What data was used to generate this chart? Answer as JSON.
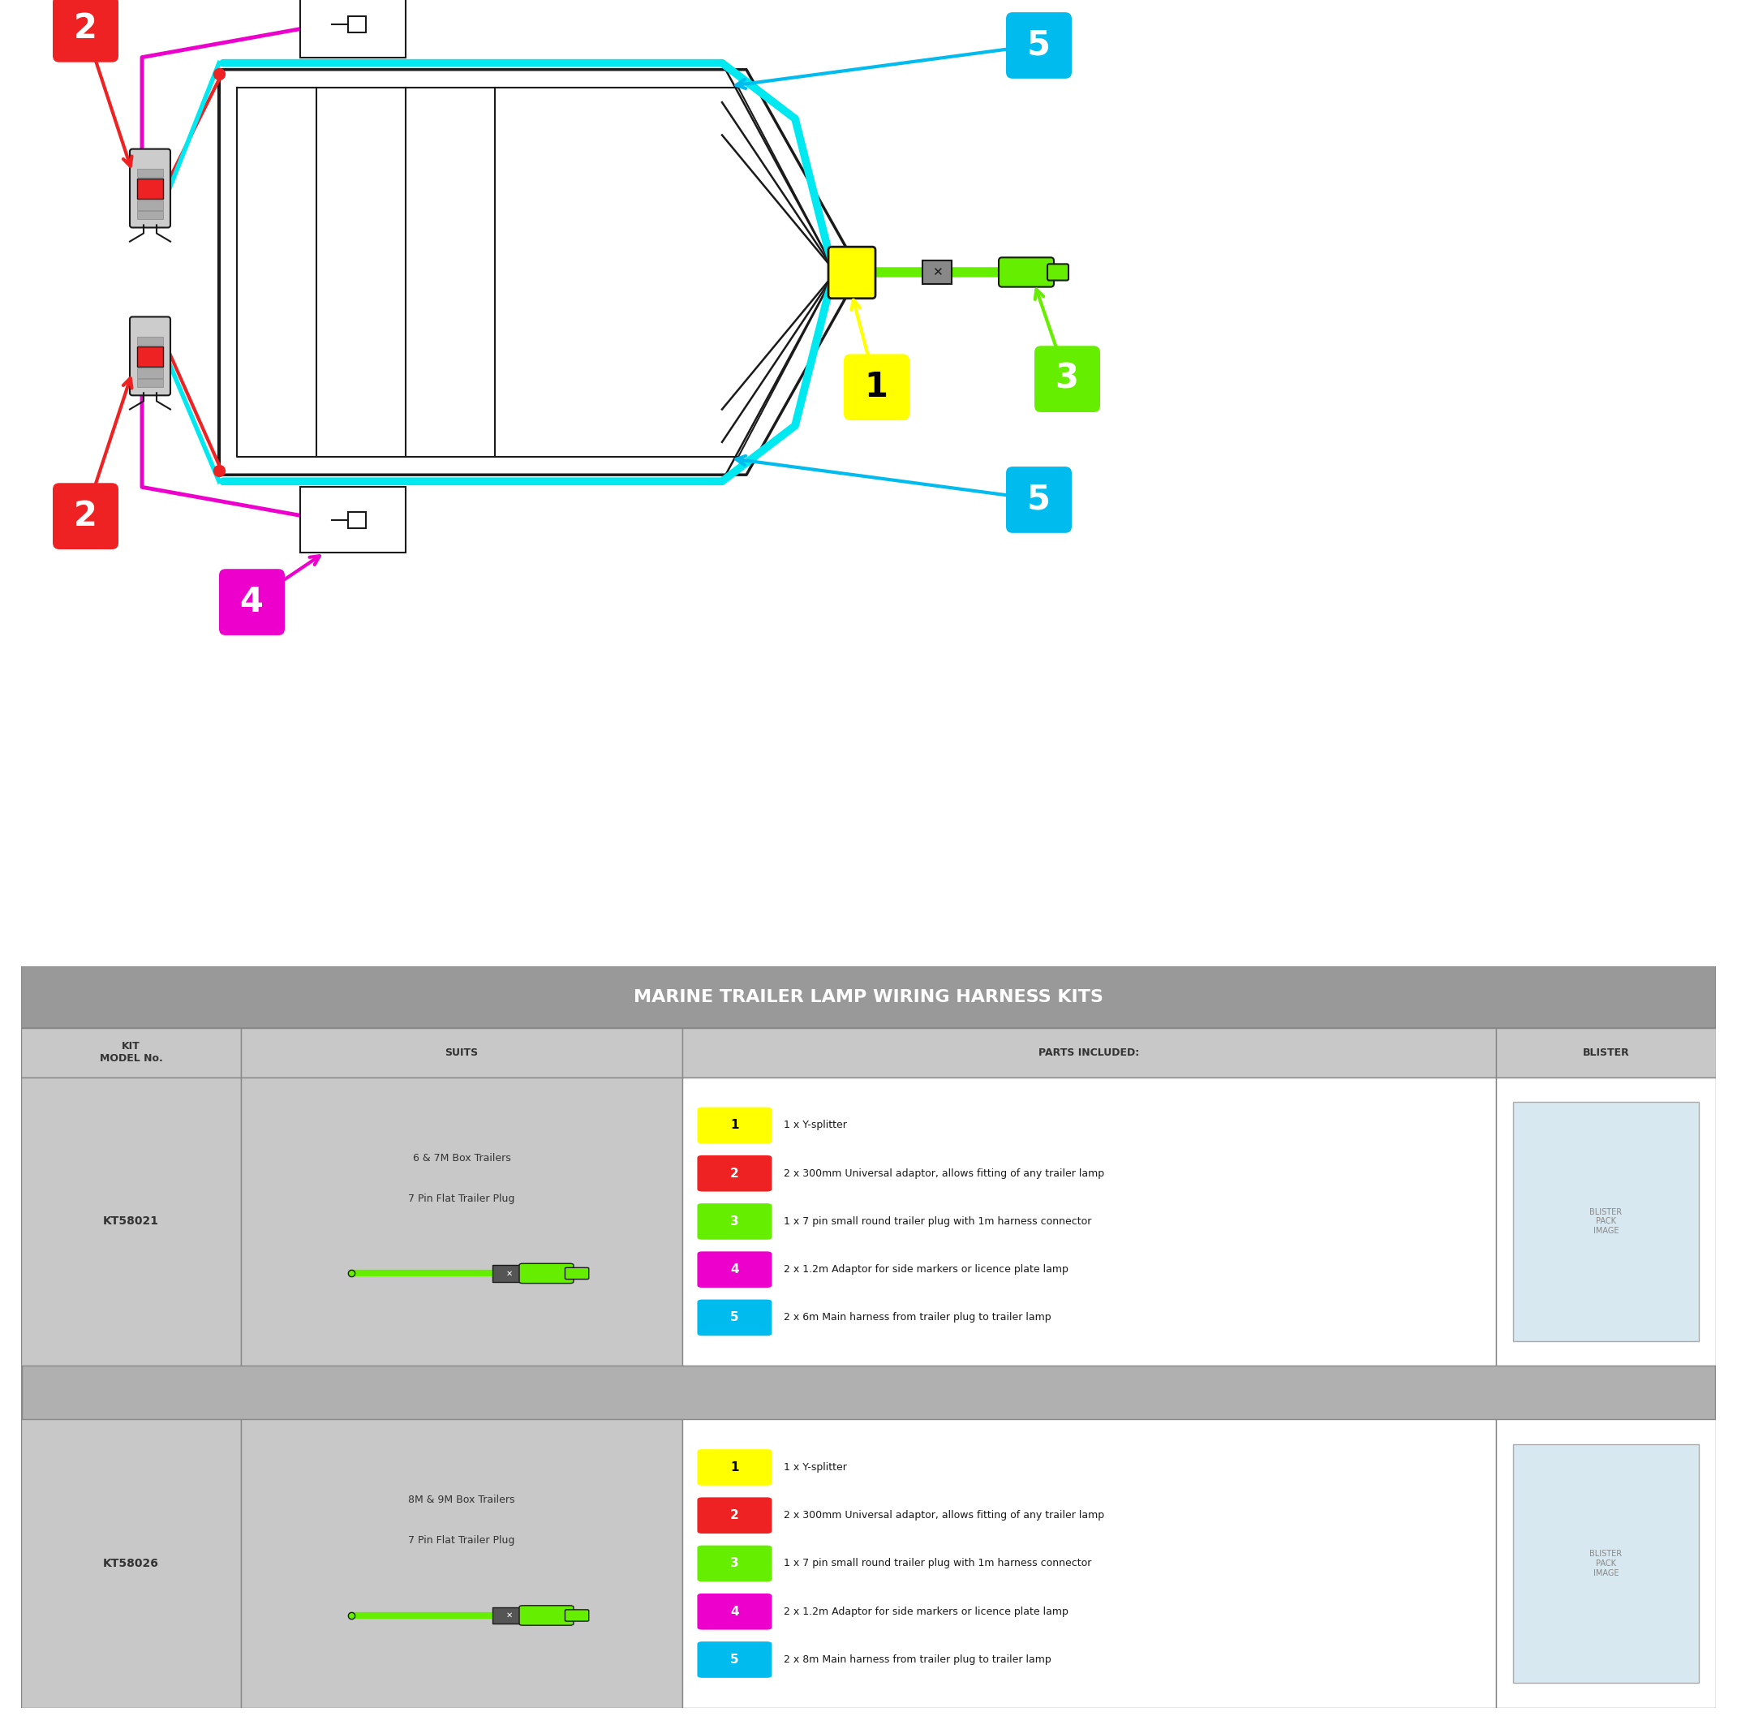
{
  "title": "MARINE TRAILER LAMP WIRING HARNESS KITS",
  "bg_color": "#ffffff",
  "colors": {
    "cyan": "#00e8f0",
    "magenta": "#ee00cc",
    "red": "#ee2222",
    "yellow": "#ffff00",
    "green": "#66ee00",
    "dark": "#1a1a1a",
    "white": "#ffffff",
    "gray_light": "#cccccc",
    "gray_mid": "#aaaaaa",
    "gray_dark": "#888888"
  },
  "badge_colors": {
    "1": "#ffff00",
    "2": "#ee2222",
    "3": "#66ee00",
    "4": "#ee00cc",
    "5": "#00bbee"
  },
  "kits": [
    {
      "model": "KT58021",
      "suits_line1": "6 & 7M Box Trailers",
      "suits_line2": "7 Pin Flat Trailer Plug",
      "parts_desc": [
        "1 x Y-splitter",
        "2 x 300mm Universal adaptor, allows fitting of any trailer lamp",
        "1 x 7 pin small round trailer plug with 1m harness connector",
        "2 x 1.2m Adaptor for side markers or licence plate lamp",
        "2 x 6m Main harness from trailer plug to trailer lamp"
      ]
    },
    {
      "model": "KT58026",
      "suits_line1": "8M & 9M Box Trailers",
      "suits_line2": "7 Pin Flat Trailer Plug",
      "parts_desc": [
        "1 x Y-splitter",
        "2 x 300mm Universal adaptor, allows fitting of any trailer lamp",
        "1 x 7 pin small round trailer plug with 1m harness connector",
        "2 x 1.2m Adaptor for side markers or licence plate lamp",
        "2 x 8m Main harness from trailer plug to trailer lamp"
      ]
    }
  ]
}
